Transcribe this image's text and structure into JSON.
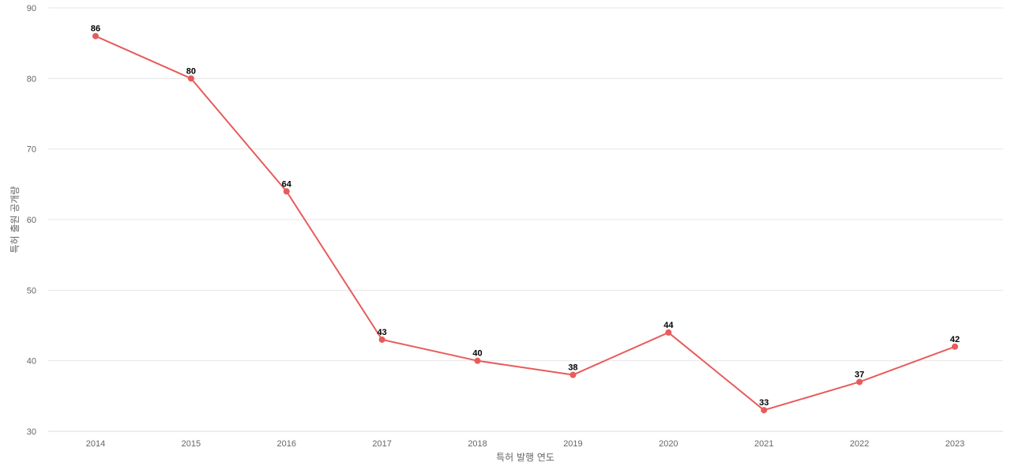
{
  "chart_data": {
    "type": "line",
    "title": "",
    "xlabel": "특허 발행 연도",
    "ylabel": "특허 출원 공개량",
    "categories": [
      "2014",
      "2015",
      "2016",
      "2017",
      "2018",
      "2019",
      "2020",
      "2021",
      "2022",
      "2023"
    ],
    "series": [
      {
        "values": [
          86,
          80,
          64,
          43,
          40,
          38,
          44,
          33,
          37,
          42
        ]
      }
    ],
    "ylim": [
      30,
      90
    ],
    "yticks": [
      30,
      40,
      50,
      60,
      70,
      80,
      90
    ],
    "grid": true,
    "data_labels": true,
    "line_color": "#e85b5b"
  }
}
